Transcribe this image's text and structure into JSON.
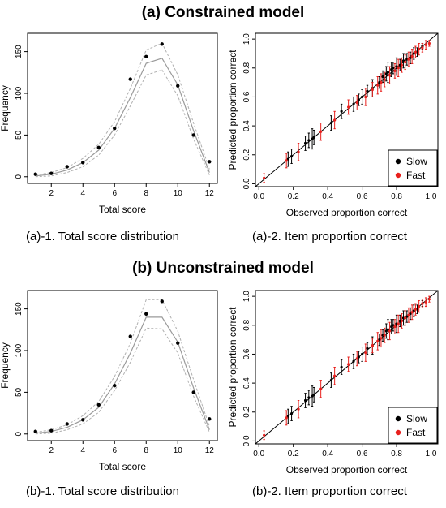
{
  "panels": [
    {
      "title": "(a) Constrained model",
      "captions": {
        "left": "(a)-1. Total score distribution",
        "right": "(a)-2. Item proportion correct"
      }
    },
    {
      "title": "(b) Unconstrained model",
      "captions": {
        "left": "(b)-1. Total score distribution",
        "right": "(b)-2. Item proportion correct"
      }
    }
  ],
  "chart_data": [
    {
      "type": "line",
      "panel": "(a)-1",
      "xlabel": "Total score",
      "ylabel": "Frequency",
      "xticks": [
        2,
        4,
        6,
        8,
        10,
        12
      ],
      "yticks": [
        0,
        50,
        100,
        150
      ],
      "xlim": [
        0.5,
        12.5
      ],
      "ylim": [
        -8,
        172
      ],
      "x": [
        1,
        2,
        3,
        4,
        5,
        6,
        7,
        8,
        9,
        10,
        11,
        12
      ],
      "observed": [
        3,
        4,
        12,
        17,
        35,
        58,
        117,
        144,
        159,
        109,
        50,
        18
      ],
      "predicted_median": [
        1,
        3,
        8,
        17,
        32,
        58,
        95,
        136,
        142,
        110,
        55,
        5
      ],
      "predicted_lower": [
        0,
        1,
        5,
        12,
        26,
        50,
        85,
        122,
        128,
        97,
        45,
        2
      ],
      "predicted_upper": [
        2,
        5,
        11,
        22,
        39,
        66,
        106,
        152,
        160,
        122,
        64,
        9
      ]
    },
    {
      "type": "scatter",
      "panel": "(a)-2",
      "xlabel": "Observed proportion correct",
      "ylabel": "Predicted proportion correct",
      "xticks": [
        0.0,
        0.2,
        0.4,
        0.6,
        0.8,
        1.0
      ],
      "yticks": [
        0.0,
        0.2,
        0.4,
        0.6,
        0.8,
        1.0
      ],
      "xlim": [
        -0.02,
        1.04
      ],
      "ylim": [
        -0.02,
        1.04
      ],
      "reference_line": "y = x",
      "legend": {
        "position": "bottom-right",
        "entries": [
          {
            "label": "Slow",
            "color": "#000000"
          },
          {
            "label": "Fast",
            "color": "#e8201d"
          }
        ]
      },
      "series": [
        {
          "name": "Slow",
          "color": "#000000",
          "points": [
            [
              0.17,
              0.17,
              0.05
            ],
            [
              0.19,
              0.19,
              0.05
            ],
            [
              0.27,
              0.28,
              0.05
            ],
            [
              0.29,
              0.3,
              0.05
            ],
            [
              0.31,
              0.31,
              0.07
            ],
            [
              0.32,
              0.32,
              0.05
            ],
            [
              0.42,
              0.42,
              0.05
            ],
            [
              0.48,
              0.5,
              0.05
            ],
            [
              0.55,
              0.55,
              0.05
            ],
            [
              0.58,
              0.58,
              0.04
            ],
            [
              0.6,
              0.6,
              0.05
            ],
            [
              0.63,
              0.64,
              0.04
            ],
            [
              0.66,
              0.66,
              0.06
            ],
            [
              0.7,
              0.7,
              0.04
            ],
            [
              0.72,
              0.74,
              0.04
            ],
            [
              0.74,
              0.76,
              0.05
            ],
            [
              0.75,
              0.77,
              0.07
            ],
            [
              0.77,
              0.79,
              0.05
            ],
            [
              0.78,
              0.8,
              0.04
            ],
            [
              0.8,
              0.81,
              0.06
            ],
            [
              0.82,
              0.82,
              0.04
            ],
            [
              0.84,
              0.85,
              0.05
            ],
            [
              0.86,
              0.86,
              0.04
            ],
            [
              0.88,
              0.87,
              0.04
            ],
            [
              0.9,
              0.9,
              0.04
            ],
            [
              0.92,
              0.91,
              0.03
            ],
            [
              0.95,
              0.95,
              0.02
            ]
          ]
        },
        {
          "name": "Fast",
          "color": "#e8201d",
          "points": [
            [
              0.03,
              0.04,
              0.03
            ],
            [
              0.16,
              0.16,
              0.05
            ],
            [
              0.23,
              0.22,
              0.06
            ],
            [
              0.36,
              0.36,
              0.06
            ],
            [
              0.44,
              0.44,
              0.06
            ],
            [
              0.52,
              0.53,
              0.05
            ],
            [
              0.57,
              0.56,
              0.05
            ],
            [
              0.62,
              0.6,
              0.06
            ],
            [
              0.66,
              0.65,
              0.05
            ],
            [
              0.69,
              0.68,
              0.06
            ],
            [
              0.71,
              0.7,
              0.06
            ],
            [
              0.73,
              0.72,
              0.05
            ],
            [
              0.76,
              0.75,
              0.06
            ],
            [
              0.79,
              0.78,
              0.05
            ],
            [
              0.81,
              0.8,
              0.06
            ],
            [
              0.83,
              0.82,
              0.05
            ],
            [
              0.85,
              0.84,
              0.05
            ],
            [
              0.87,
              0.86,
              0.05
            ],
            [
              0.89,
              0.88,
              0.05
            ],
            [
              0.91,
              0.91,
              0.04
            ],
            [
              0.93,
              0.93,
              0.04
            ],
            [
              0.95,
              0.94,
              0.03
            ],
            [
              0.97,
              0.96,
              0.03
            ],
            [
              0.99,
              0.97,
              0.02
            ]
          ]
        }
      ]
    },
    {
      "type": "line",
      "panel": "(b)-1",
      "xlabel": "Total score",
      "ylabel": "Frequency",
      "xticks": [
        2,
        4,
        6,
        8,
        10,
        12
      ],
      "yticks": [
        0,
        50,
        100,
        150
      ],
      "xlim": [
        0.5,
        12.5
      ],
      "ylim": [
        -8,
        172
      ],
      "x": [
        1,
        2,
        3,
        4,
        5,
        6,
        7,
        8,
        9,
        10,
        11,
        12
      ],
      "observed": [
        3,
        4,
        12,
        17,
        35,
        58,
        117,
        144,
        159,
        109,
        50,
        18
      ],
      "predicted_median": [
        1,
        3,
        8,
        17,
        32,
        60,
        97,
        140,
        140,
        110,
        55,
        5
      ],
      "predicted_lower": [
        0,
        1,
        5,
        12,
        26,
        52,
        86,
        127,
        126,
        97,
        45,
        2
      ],
      "predicted_upper": [
        2,
        5,
        11,
        22,
        39,
        69,
        109,
        161,
        161,
        123,
        65,
        9
      ]
    },
    {
      "type": "scatter",
      "panel": "(b)-2",
      "xlabel": "Observed proportion correct",
      "ylabel": "Predicted proportion correct",
      "xticks": [
        0.0,
        0.2,
        0.4,
        0.6,
        0.8,
        1.0
      ],
      "yticks": [
        0.0,
        0.2,
        0.4,
        0.6,
        0.8,
        1.0
      ],
      "xlim": [
        -0.02,
        1.04
      ],
      "ylim": [
        -0.02,
        1.04
      ],
      "reference_line": "y = x",
      "legend": {
        "position": "bottom-right",
        "entries": [
          {
            "label": "Slow",
            "color": "#000000"
          },
          {
            "label": "Fast",
            "color": "#e8201d"
          }
        ]
      },
      "series": [
        {
          "name": "Slow",
          "color": "#000000",
          "points": [
            [
              0.17,
              0.17,
              0.05
            ],
            [
              0.19,
              0.19,
              0.05
            ],
            [
              0.27,
              0.28,
              0.05
            ],
            [
              0.29,
              0.3,
              0.05
            ],
            [
              0.31,
              0.31,
              0.07
            ],
            [
              0.32,
              0.32,
              0.05
            ],
            [
              0.42,
              0.42,
              0.05
            ],
            [
              0.48,
              0.51,
              0.05
            ],
            [
              0.55,
              0.55,
              0.05
            ],
            [
              0.58,
              0.58,
              0.04
            ],
            [
              0.6,
              0.6,
              0.05
            ],
            [
              0.63,
              0.64,
              0.04
            ],
            [
              0.66,
              0.66,
              0.06
            ],
            [
              0.7,
              0.7,
              0.04
            ],
            [
              0.72,
              0.73,
              0.04
            ],
            [
              0.74,
              0.76,
              0.05
            ],
            [
              0.75,
              0.77,
              0.07
            ],
            [
              0.77,
              0.79,
              0.05
            ],
            [
              0.78,
              0.8,
              0.04
            ],
            [
              0.8,
              0.81,
              0.06
            ],
            [
              0.82,
              0.83,
              0.04
            ],
            [
              0.84,
              0.85,
              0.05
            ],
            [
              0.86,
              0.86,
              0.04
            ],
            [
              0.88,
              0.88,
              0.04
            ],
            [
              0.9,
              0.9,
              0.04
            ],
            [
              0.92,
              0.91,
              0.03
            ],
            [
              0.95,
              0.95,
              0.02
            ]
          ]
        },
        {
          "name": "Fast",
          "color": "#e8201d",
          "points": [
            [
              0.03,
              0.04,
              0.03
            ],
            [
              0.16,
              0.16,
              0.05
            ],
            [
              0.23,
              0.22,
              0.06
            ],
            [
              0.36,
              0.36,
              0.06
            ],
            [
              0.44,
              0.45,
              0.06
            ],
            [
              0.52,
              0.53,
              0.05
            ],
            [
              0.57,
              0.57,
              0.05
            ],
            [
              0.62,
              0.61,
              0.06
            ],
            [
              0.66,
              0.66,
              0.05
            ],
            [
              0.69,
              0.69,
              0.06
            ],
            [
              0.71,
              0.71,
              0.06
            ],
            [
              0.73,
              0.73,
              0.05
            ],
            [
              0.76,
              0.76,
              0.06
            ],
            [
              0.79,
              0.79,
              0.05
            ],
            [
              0.81,
              0.81,
              0.06
            ],
            [
              0.83,
              0.83,
              0.05
            ],
            [
              0.85,
              0.85,
              0.05
            ],
            [
              0.87,
              0.87,
              0.05
            ],
            [
              0.89,
              0.89,
              0.05
            ],
            [
              0.91,
              0.91,
              0.04
            ],
            [
              0.93,
              0.93,
              0.04
            ],
            [
              0.95,
              0.95,
              0.03
            ],
            [
              0.97,
              0.96,
              0.03
            ],
            [
              0.99,
              0.98,
              0.02
            ]
          ]
        }
      ]
    }
  ]
}
